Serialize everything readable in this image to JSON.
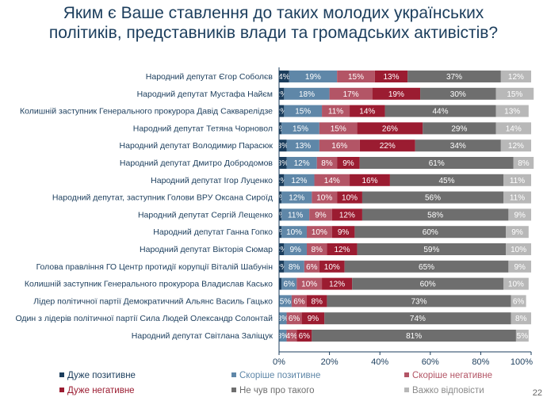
{
  "title_lines": [
    "Яким є Ваше ставлення до таких молодих українських",
    "політиків, представників влади та громадських активістів?"
  ],
  "page_number": "22",
  "chart_data": {
    "type": "bar",
    "orientation": "horizontal",
    "stacked": true,
    "title": "Яким є Ваше ставлення до таких молодих українських політиків, представників влади та громадських активістів?",
    "xlim": [
      0,
      100
    ],
    "x_ticks": [
      "0%",
      "20%",
      "40%",
      "60%",
      "80%",
      "100%"
    ],
    "grid": false,
    "legend_position": "bottom",
    "categories": [
      "Народний депутат Єгор Соболєв",
      "Народний депутат Мустафа Найєм",
      "Колишній заступник Генерального прокурора Давід Сакварелідзе",
      "Народний депутат Тетяна Чорновол",
      "Народний депутат Володимир Парасюк",
      "Народний депутат Дмитро Добродомов",
      "Народний депутат Ігор Луценко",
      "Народний депутат, заступник Голови ВРУ Оксана Сироїд",
      "Народний депутат Сергій Лещенко",
      "Народний депутат Ганна Гопко",
      "Народний депутат Вікторія Сюмар",
      "Голова правління ГО Центр протидії корупції Віталій Шабунін",
      "Колишній заступник Генерального прокурора Владислав Касько",
      "Лідер політичної партії Демократичний Альянс Василь Гацько",
      "Один з лідерів політичної партії Сила Людей Олександр Солонтай",
      "Народний депутат Світлана Заліщук"
    ],
    "series": [
      {
        "name": "Дуже позитивне",
        "color": "#1b3d5c",
        "text_color": "#ffffff",
        "values": [
          4,
          2,
          2,
          1,
          3,
          3,
          2,
          1,
          1,
          1,
          2,
          2,
          1,
          0,
          0,
          0
        ],
        "labels": [
          "4%",
          "2%",
          "2%",
          "1%",
          "3%",
          "3%",
          "2%",
          "1%",
          "1%",
          "1%",
          "2%",
          "2%",
          "",
          "",
          "",
          ""
        ]
      },
      {
        "name": "Скоріше позитивне",
        "color": "#5f87a8",
        "text_color": "#ffffff",
        "values": [
          19,
          18,
          15,
          15,
          13,
          12,
          12,
          12,
          11,
          10,
          9,
          8,
          6,
          5,
          3,
          3
        ],
        "labels": [
          "19%",
          "18%",
          "15%",
          "15%",
          "13%",
          "12%",
          "12%",
          "12%",
          "11%",
          "10%",
          "9%",
          "8%",
          "6%",
          "5%",
          "3%",
          "3%"
        ]
      },
      {
        "name": "Скоріше негативне",
        "color": "#b35566",
        "text_color": "#ffffff",
        "values": [
          15,
          17,
          11,
          15,
          16,
          8,
          14,
          10,
          9,
          10,
          8,
          6,
          10,
          6,
          6,
          4
        ],
        "labels": [
          "15%",
          "17%",
          "11%",
          "15%",
          "16%",
          "8%",
          "14%",
          "10%",
          "9%",
          "10%",
          "8%",
          "6%",
          "10%",
          "6%",
          "6%",
          "4%"
        ]
      },
      {
        "name": "Дуже негативне",
        "color": "#9b1c31",
        "text_color": "#ffffff",
        "values": [
          13,
          19,
          14,
          26,
          22,
          9,
          16,
          10,
          12,
          9,
          12,
          10,
          12,
          8,
          9,
          6
        ],
        "labels": [
          "13%",
          "19%",
          "14%",
          "26%",
          "22%",
          "9%",
          "16%",
          "10%",
          "12%",
          "9%",
          "12%",
          "10%",
          "12%",
          "8%",
          "9%",
          "6%"
        ]
      },
      {
        "name": "Не чув про такого",
        "color": "#6e6e6e",
        "text_color": "#ffffff",
        "values": [
          37,
          30,
          44,
          29,
          34,
          61,
          45,
          56,
          58,
          60,
          59,
          65,
          60,
          73,
          74,
          81
        ],
        "labels": [
          "37%",
          "30%",
          "44%",
          "29%",
          "34%",
          "61%",
          "45%",
          "56%",
          "58%",
          "60%",
          "59%",
          "65%",
          "60%",
          "73%",
          "74%",
          "81%"
        ]
      },
      {
        "name": "Важко відповісти",
        "color": "#b8b8b8",
        "text_color": "#ffffff",
        "values": [
          12,
          15,
          13,
          14,
          12,
          8,
          11,
          11,
          9,
          9,
          10,
          9,
          10,
          6,
          8,
          5
        ],
        "labels": [
          "12%",
          "15%",
          "13%",
          "14%",
          "12%",
          "8%",
          "11%",
          "11%",
          "9%",
          "9%",
          "10%",
          "9%",
          "10%",
          "6%",
          "8%",
          "5%"
        ]
      }
    ]
  }
}
